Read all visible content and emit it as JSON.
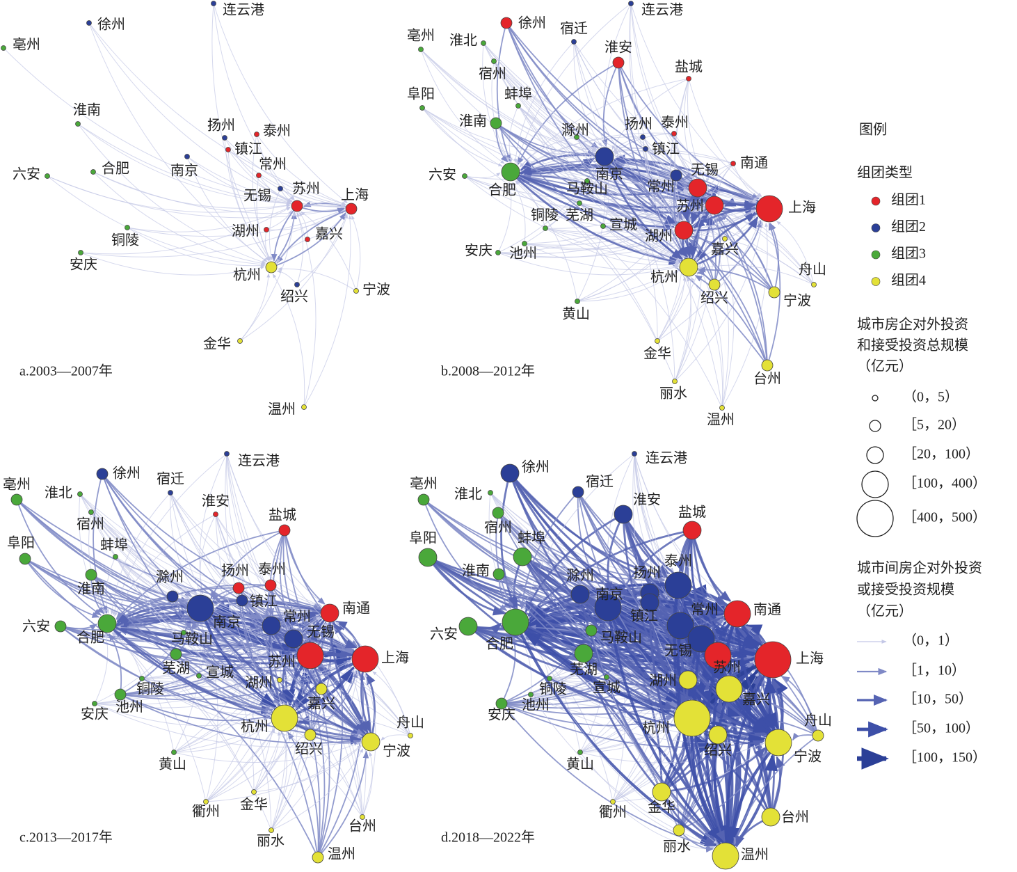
{
  "panels": [
    {
      "caption": "a.2003—2007年",
      "nodes": [
        {
          "label": "连云港",
          "group": 1,
          "size": 0
        },
        {
          "label": "徐州",
          "group": 1,
          "size": 0
        },
        {
          "label": "亳州",
          "group": 2,
          "size": 0
        },
        {
          "label": "淮南",
          "group": 2,
          "size": 0
        },
        {
          "label": "六安",
          "group": 2,
          "size": 0
        },
        {
          "label": "合肥",
          "group": 2,
          "size": 0
        },
        {
          "label": "铜陵",
          "group": 2,
          "size": 0
        },
        {
          "label": "安庆",
          "group": 2,
          "size": 0
        },
        {
          "label": "南京",
          "group": 1,
          "size": 0
        },
        {
          "label": "扬州",
          "group": 1,
          "size": 0
        },
        {
          "label": "泰州",
          "group": 0,
          "size": 0
        },
        {
          "label": "镇江",
          "group": 0,
          "size": 0
        },
        {
          "label": "常州",
          "group": 0,
          "size": 0
        },
        {
          "label": "无锡",
          "group": 1,
          "size": 0
        },
        {
          "label": "苏州",
          "group": 0,
          "size": 1
        },
        {
          "label": "上海",
          "group": 0,
          "size": 1
        },
        {
          "label": "湖州",
          "group": 0,
          "size": 0
        },
        {
          "label": "嘉兴",
          "group": 0,
          "size": 0
        },
        {
          "label": "杭州",
          "group": 3,
          "size": 1
        },
        {
          "label": "绍兴",
          "group": 1,
          "size": 0
        },
        {
          "label": "宁波",
          "group": 3,
          "size": 0
        },
        {
          "label": "金华",
          "group": 3,
          "size": 0
        },
        {
          "label": "温州",
          "group": 3,
          "size": 0
        }
      ]
    },
    {
      "caption": "b.2008—2012年",
      "nodes": [
        {
          "label": "连云港",
          "group": 1,
          "size": 0
        },
        {
          "label": "徐州",
          "group": 0,
          "size": 1
        },
        {
          "label": "亳州",
          "group": 2,
          "size": 0
        },
        {
          "label": "淮北",
          "group": 2,
          "size": 0
        },
        {
          "label": "宿迁",
          "group": 1,
          "size": 0
        },
        {
          "label": "淮安",
          "group": 0,
          "size": 1
        },
        {
          "label": "盐城",
          "group": 0,
          "size": 0
        },
        {
          "label": "宿州",
          "group": 2,
          "size": 0
        },
        {
          "label": "阜阳",
          "group": 2,
          "size": 0
        },
        {
          "label": "蚌埠",
          "group": 2,
          "size": 0
        },
        {
          "label": "淮南",
          "group": 2,
          "size": 1
        },
        {
          "label": "滁州",
          "group": 2,
          "size": 0
        },
        {
          "label": "扬州",
          "group": 1,
          "size": 0
        },
        {
          "label": "泰州",
          "group": 0,
          "size": 0
        },
        {
          "label": "镇江",
          "group": 1,
          "size": 0
        },
        {
          "label": "南京",
          "group": 1,
          "size": 2
        },
        {
          "label": "无锡",
          "group": 1,
          "size": 1
        },
        {
          "label": "南通",
          "group": 0,
          "size": 0
        },
        {
          "label": "六安",
          "group": 2,
          "size": 0
        },
        {
          "label": "合肥",
          "group": 2,
          "size": 2
        },
        {
          "label": "马鞍山",
          "group": 2,
          "size": 0
        },
        {
          "label": "常州",
          "group": 0,
          "size": 2
        },
        {
          "label": "苏州",
          "group": 0,
          "size": 2
        },
        {
          "label": "芜湖",
          "group": 2,
          "size": 0
        },
        {
          "label": "铜陵",
          "group": 2,
          "size": 0
        },
        {
          "label": "宣城",
          "group": 2,
          "size": 0
        },
        {
          "label": "上海",
          "group": 0,
          "size": 3
        },
        {
          "label": "湖州",
          "group": 0,
          "size": 2
        },
        {
          "label": "嘉兴",
          "group": 3,
          "size": 0
        },
        {
          "label": "池州",
          "group": 2,
          "size": 0
        },
        {
          "label": "安庆",
          "group": 2,
          "size": 0
        },
        {
          "label": "杭州",
          "group": 3,
          "size": 2
        },
        {
          "label": "舟山",
          "group": 3,
          "size": 0
        },
        {
          "label": "绍兴",
          "group": 3,
          "size": 1
        },
        {
          "label": "宁波",
          "group": 3,
          "size": 1
        },
        {
          "label": "黄山",
          "group": 2,
          "size": 0
        },
        {
          "label": "金华",
          "group": 3,
          "size": 0
        },
        {
          "label": "台州",
          "group": 3,
          "size": 1
        },
        {
          "label": "丽水",
          "group": 3,
          "size": 0
        },
        {
          "label": "温州",
          "group": 3,
          "size": 0
        }
      ]
    },
    {
      "caption": "c.2013—2017年",
      "nodes": [
        {
          "label": "连云港",
          "group": 1,
          "size": 0
        },
        {
          "label": "亳州",
          "group": 2,
          "size": 1
        },
        {
          "label": "淮北",
          "group": 2,
          "size": 0
        },
        {
          "label": "徐州",
          "group": 1,
          "size": 1
        },
        {
          "label": "宿迁",
          "group": 1,
          "size": 0
        },
        {
          "label": "淮安",
          "group": 0,
          "size": 0
        },
        {
          "label": "盐城",
          "group": 0,
          "size": 1
        },
        {
          "label": "宿州",
          "group": 2,
          "size": 0
        },
        {
          "label": "阜阳",
          "group": 2,
          "size": 1
        },
        {
          "label": "蚌埠",
          "group": 2,
          "size": 0
        },
        {
          "label": "淮南",
          "group": 2,
          "size": 1
        },
        {
          "label": "滁州",
          "group": 1,
          "size": 1
        },
        {
          "label": "扬州",
          "group": 0,
          "size": 1
        },
        {
          "label": "泰州",
          "group": 0,
          "size": 1
        },
        {
          "label": "镇江",
          "group": 1,
          "size": 1
        },
        {
          "label": "南京",
          "group": 1,
          "size": 3
        },
        {
          "label": "常州",
          "group": 1,
          "size": 2
        },
        {
          "label": "无锡",
          "group": 1,
          "size": 2
        },
        {
          "label": "南通",
          "group": 0,
          "size": 2
        },
        {
          "label": "六安",
          "group": 2,
          "size": 1
        },
        {
          "label": "合肥",
          "group": 2,
          "size": 2
        },
        {
          "label": "马鞍山",
          "group": 2,
          "size": 0
        },
        {
          "label": "芜湖",
          "group": 2,
          "size": 1
        },
        {
          "label": "宣城",
          "group": 2,
          "size": 0
        },
        {
          "label": "苏州",
          "group": 0,
          "size": 3
        },
        {
          "label": "上海",
          "group": 0,
          "size": 3
        },
        {
          "label": "湖州",
          "group": 3,
          "size": 0
        },
        {
          "label": "嘉兴",
          "group": 3,
          "size": 1
        },
        {
          "label": "铜陵",
          "group": 2,
          "size": 0
        },
        {
          "label": "池州",
          "group": 2,
          "size": 1
        },
        {
          "label": "安庆",
          "group": 2,
          "size": 0
        },
        {
          "label": "杭州",
          "group": 3,
          "size": 3
        },
        {
          "label": "绍兴",
          "group": 3,
          "size": 1
        },
        {
          "label": "宁波",
          "group": 3,
          "size": 2
        },
        {
          "label": "舟山",
          "group": 3,
          "size": 0
        },
        {
          "label": "黄山",
          "group": 2,
          "size": 0
        },
        {
          "label": "衢州",
          "group": 3,
          "size": 0
        },
        {
          "label": "金华",
          "group": 3,
          "size": 0
        },
        {
          "label": "台州",
          "group": 3,
          "size": 0
        },
        {
          "label": "丽水",
          "group": 3,
          "size": 0
        },
        {
          "label": "温州",
          "group": 3,
          "size": 1
        }
      ]
    },
    {
      "caption": "d.2018—2022年",
      "nodes": [
        {
          "label": "连云港",
          "group": 1,
          "size": 0
        },
        {
          "label": "徐州",
          "group": 1,
          "size": 2
        },
        {
          "label": "亳州",
          "group": 2,
          "size": 1
        },
        {
          "label": "淮北",
          "group": 2,
          "size": 0
        },
        {
          "label": "宿迁",
          "group": 1,
          "size": 1
        },
        {
          "label": "淮安",
          "group": 1,
          "size": 2
        },
        {
          "label": "盐城",
          "group": 0,
          "size": 2
        },
        {
          "label": "宿州",
          "group": 2,
          "size": 1
        },
        {
          "label": "阜阳",
          "group": 2,
          "size": 2
        },
        {
          "label": "蚌埠",
          "group": 2,
          "size": 2
        },
        {
          "label": "淮南",
          "group": 2,
          "size": 1
        },
        {
          "label": "滁州",
          "group": 1,
          "size": 2
        },
        {
          "label": "扬州",
          "group": 1,
          "size": 2
        },
        {
          "label": "泰州",
          "group": 1,
          "size": 3
        },
        {
          "label": "南京",
          "group": 1,
          "size": 3
        },
        {
          "label": "镇江",
          "group": 1,
          "size": 2
        },
        {
          "label": "常州",
          "group": 1,
          "size": 3
        },
        {
          "label": "无锡",
          "group": 1,
          "size": 3
        },
        {
          "label": "南通",
          "group": 0,
          "size": 3
        },
        {
          "label": "六安",
          "group": 2,
          "size": 2
        },
        {
          "label": "合肥",
          "group": 2,
          "size": 3
        },
        {
          "label": "马鞍山",
          "group": 2,
          "size": 1
        },
        {
          "label": "芜湖",
          "group": 2,
          "size": 2
        },
        {
          "label": "宣城",
          "group": 2,
          "size": 0
        },
        {
          "label": "苏州",
          "group": 0,
          "size": 3
        },
        {
          "label": "上海",
          "group": 0,
          "size": 4
        },
        {
          "label": "湖州",
          "group": 3,
          "size": 2
        },
        {
          "label": "嘉兴",
          "group": 3,
          "size": 3
        },
        {
          "label": "铜陵",
          "group": 2,
          "size": 0
        },
        {
          "label": "池州",
          "group": 2,
          "size": 0
        },
        {
          "label": "安庆",
          "group": 2,
          "size": 1
        },
        {
          "label": "杭州",
          "group": 3,
          "size": 4
        },
        {
          "label": "绍兴",
          "group": 3,
          "size": 2
        },
        {
          "label": "宁波",
          "group": 3,
          "size": 3
        },
        {
          "label": "舟山",
          "group": 3,
          "size": 1
        },
        {
          "label": "黄山",
          "group": 2,
          "size": 0
        },
        {
          "label": "衢州",
          "group": 3,
          "size": 0
        },
        {
          "label": "金华",
          "group": 3,
          "size": 2
        },
        {
          "label": "台州",
          "group": 3,
          "size": 2
        },
        {
          "label": "丽水",
          "group": 3,
          "size": 1
        },
        {
          "label": "温州",
          "group": 3,
          "size": 3
        }
      ]
    }
  ],
  "legend": {
    "title": "图例",
    "group_title": "组团类型",
    "groups": [
      {
        "name": "组团1",
        "color": "#e4252a"
      },
      {
        "name": "组团2",
        "color": "#2b3f97"
      },
      {
        "name": "组团3",
        "color": "#4aa83a"
      },
      {
        "name": "组团4",
        "color": "#e3e137"
      }
    ],
    "size_title": [
      "城市房企对外投资",
      "和接受投资总规模",
      "（亿元）"
    ],
    "sizes": [
      "（0，5）",
      "［5，20）",
      "［20，100）",
      "［100，400）",
      "［400，500）"
    ],
    "edge_title": [
      "城市间房企对外投资",
      "或接受投资规模",
      "（亿元）"
    ],
    "edges": [
      {
        "label": "（0，1）",
        "color": "#c3c7e6"
      },
      {
        "label": "［1，10）",
        "color": "#7f89c6"
      },
      {
        "label": "［10，50）",
        "color": "#5563b2"
      },
      {
        "label": "［50，100）",
        "color": "#3d4fa8"
      },
      {
        "label": "［100，150）",
        "color": "#2b3f97"
      }
    ]
  }
}
